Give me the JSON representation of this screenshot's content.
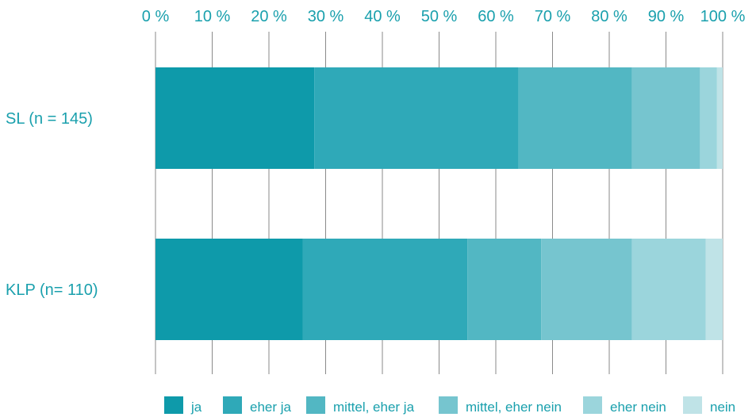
{
  "chart_data": {
    "type": "bar",
    "orientation": "horizontal",
    "stacked": true,
    "categories": [
      "SL (n = 145)",
      "KLP (n= 110)"
    ],
    "series": [
      {
        "name": "ja",
        "values": [
          28,
          26
        ],
        "color": "#0e9aaa"
      },
      {
        "name": "eher ja",
        "values": [
          36,
          29
        ],
        "color": "#2fa9b8"
      },
      {
        "name": "mittel, eher ja",
        "values": [
          20,
          13
        ],
        "color": "#52b7c3"
      },
      {
        "name": "mittel, eher nein",
        "values": [
          12,
          16
        ],
        "color": "#76c5cf"
      },
      {
        "name": "eher nein",
        "values": [
          3,
          13
        ],
        "color": "#9bd5dc"
      },
      {
        "name": "nein",
        "values": [
          1,
          3
        ],
        "color": "#bfe3e7"
      }
    ],
    "x_ticks": [
      "0 %",
      "10 %",
      "20 %",
      "30 %",
      "40 %",
      "50 %",
      "60 %",
      "70 %",
      "80 %",
      "90 %",
      "100 %"
    ],
    "xlim": [
      0,
      100
    ],
    "grid": true,
    "legend_position": "bottom"
  }
}
